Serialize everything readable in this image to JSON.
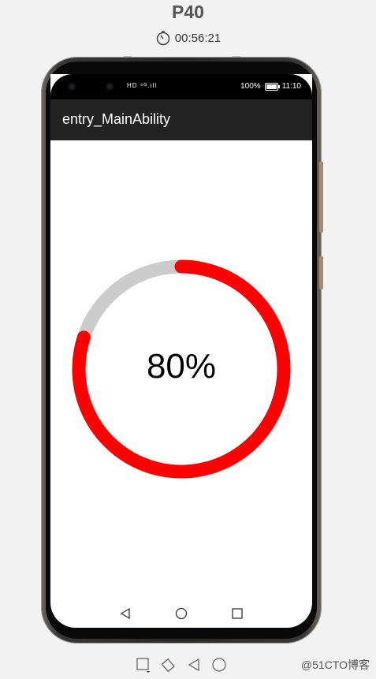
{
  "device": {
    "name": "P40",
    "elapsed_time": "00:56:21"
  },
  "status_bar": {
    "signal_text": "HD ⁴ᴳ.ıll",
    "battery": "100%",
    "time": "11:10"
  },
  "app": {
    "title": "entry_MainAbility"
  },
  "progress": {
    "value": 0.8,
    "label": "80%",
    "track_color": "#cccccc",
    "fill_color": "#ff0000"
  },
  "nav": {
    "back_icon": "back-triangle-icon",
    "home_icon": "home-circle-icon",
    "recents_icon": "recents-square-icon"
  },
  "toolbar": {
    "icons": [
      "screen-icon",
      "rotate-icon",
      "back-icon",
      "home-icon"
    ]
  },
  "watermark": "@51CTO博客"
}
